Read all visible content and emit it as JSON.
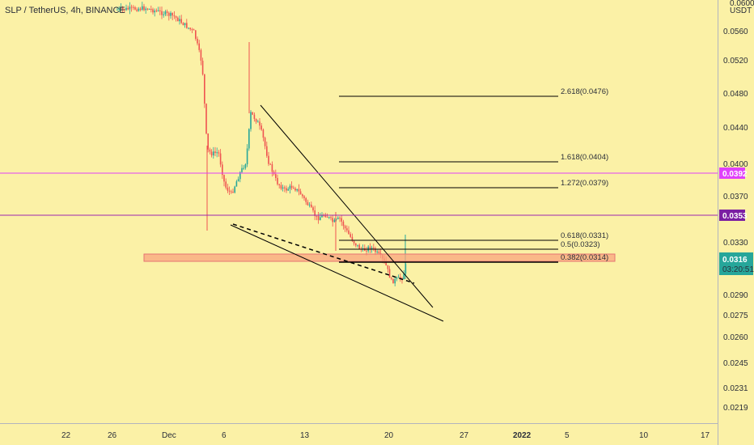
{
  "header": {
    "title": "SLP / TetherUS, 4h, BINANCE"
  },
  "chart_data": {
    "type": "candlestick",
    "title": "SLP / TetherUS, 4h, BINANCE",
    "y_unit": "USDT",
    "y_top_label": "0.0600",
    "y_ticks": [
      "0.0560",
      "0.0520",
      "0.0480",
      "0.0440",
      "0.0400",
      "0.0370",
      "0.0330",
      "0.0290",
      "0.0275",
      "0.0260",
      "0.0245",
      "0.0231",
      "0.0219"
    ],
    "x_ticks": [
      "22",
      "26",
      "Dec",
      "6",
      "13",
      "20",
      "27",
      "2022",
      "5",
      "10",
      "17"
    ],
    "last_price": "0.0316",
    "countdown": "03:20:51",
    "horizontal_levels": [
      {
        "label": "0.0392",
        "color": "#e040fb"
      },
      {
        "label": "0.0353",
        "color": "#9c27b0"
      }
    ],
    "fib_levels": [
      "2.618(0.0476)",
      "1.618(0.0404)",
      "1.272(0.0379)",
      "0.618(0.0331)",
      "0.5(0.0323)",
      "0.382(0.0314)"
    ],
    "support_zone": {
      "low": 0.0313,
      "high": 0.0317
    },
    "colors": {
      "up": "#26a69a",
      "down": "#ef5350",
      "background": "#fbf1a6",
      "zone": "#f9a47e"
    }
  }
}
